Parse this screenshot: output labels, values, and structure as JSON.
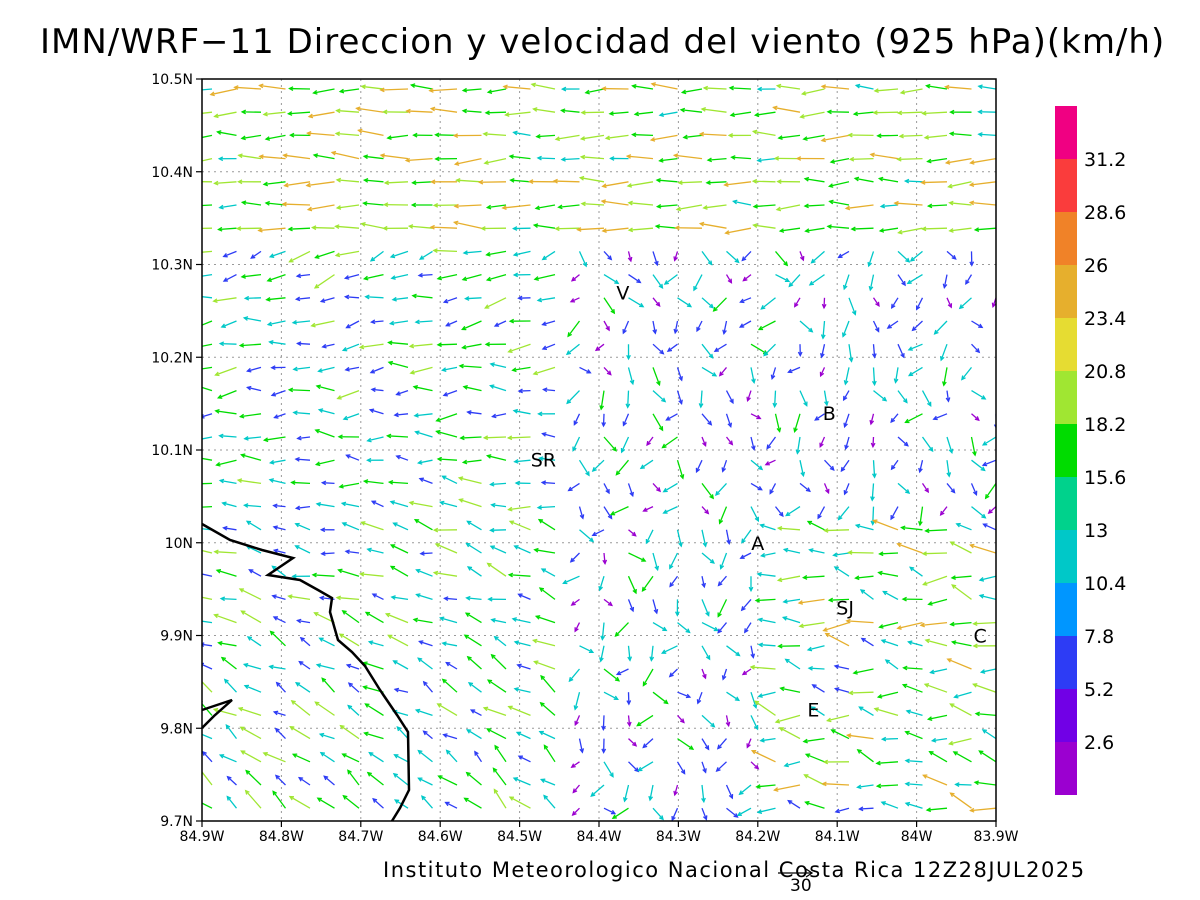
{
  "title": "IMN/WRF−11 Direccion y velocidad del viento (925 hPa)(km/h)",
  "footer": "Instituto Meteorologico Nacional Costa Rica 12Z28JUL2025",
  "reference_vector_label": "30",
  "map": {
    "lon_range": [
      -84.9,
      -83.9
    ],
    "lat_range": [
      9.7,
      10.5
    ],
    "grid": true,
    "x_ticks": [
      "84.9W",
      "84.8W",
      "84.7W",
      "84.6W",
      "84.5W",
      "84.4W",
      "84.3W",
      "84.2W",
      "84.1W",
      "84W",
      "83.9W"
    ],
    "y_ticks": [
      "9.7N",
      "9.8N",
      "9.9N",
      "10N",
      "10.1N",
      "10.2N",
      "10.3N",
      "10.4N",
      "10.5N"
    ],
    "cities": [
      {
        "label": "V",
        "lon": -84.37,
        "lat": 10.27
      },
      {
        "label": "SR",
        "lon": -84.47,
        "lat": 10.09
      },
      {
        "label": "B",
        "lon": -84.11,
        "lat": 10.14
      },
      {
        "label": "A",
        "lon": -84.2,
        "lat": 10.0
      },
      {
        "label": "SJ",
        "lon": -84.09,
        "lat": 9.93
      },
      {
        "label": "C",
        "lon": -83.92,
        "lat": 9.9
      },
      {
        "label": "E",
        "lon": -84.13,
        "lat": 9.82
      }
    ],
    "coastline_color": "#000000"
  },
  "colorbar": {
    "labels": [
      "2.6",
      "5.2",
      "7.8",
      "10.4",
      "13",
      "15.6",
      "18.2",
      "20.8",
      "23.4",
      "26",
      "28.6",
      "31.2"
    ],
    "colors": [
      "#9b00d0",
      "#7100e6",
      "#2d3cf5",
      "#0096ff",
      "#00c8c8",
      "#00d28c",
      "#00dc00",
      "#a0e632",
      "#e6dc32",
      "#e6af2d",
      "#f08228",
      "#fa3c3c",
      "#f00082"
    ]
  },
  "vector_colors": {
    "calm": "#9b00d0",
    "light": "#2d3cf5",
    "moderate": "#00c8c8",
    "fresh": "#00dc00",
    "strong": "#a0e632",
    "very_strong": "#e6af2d"
  }
}
